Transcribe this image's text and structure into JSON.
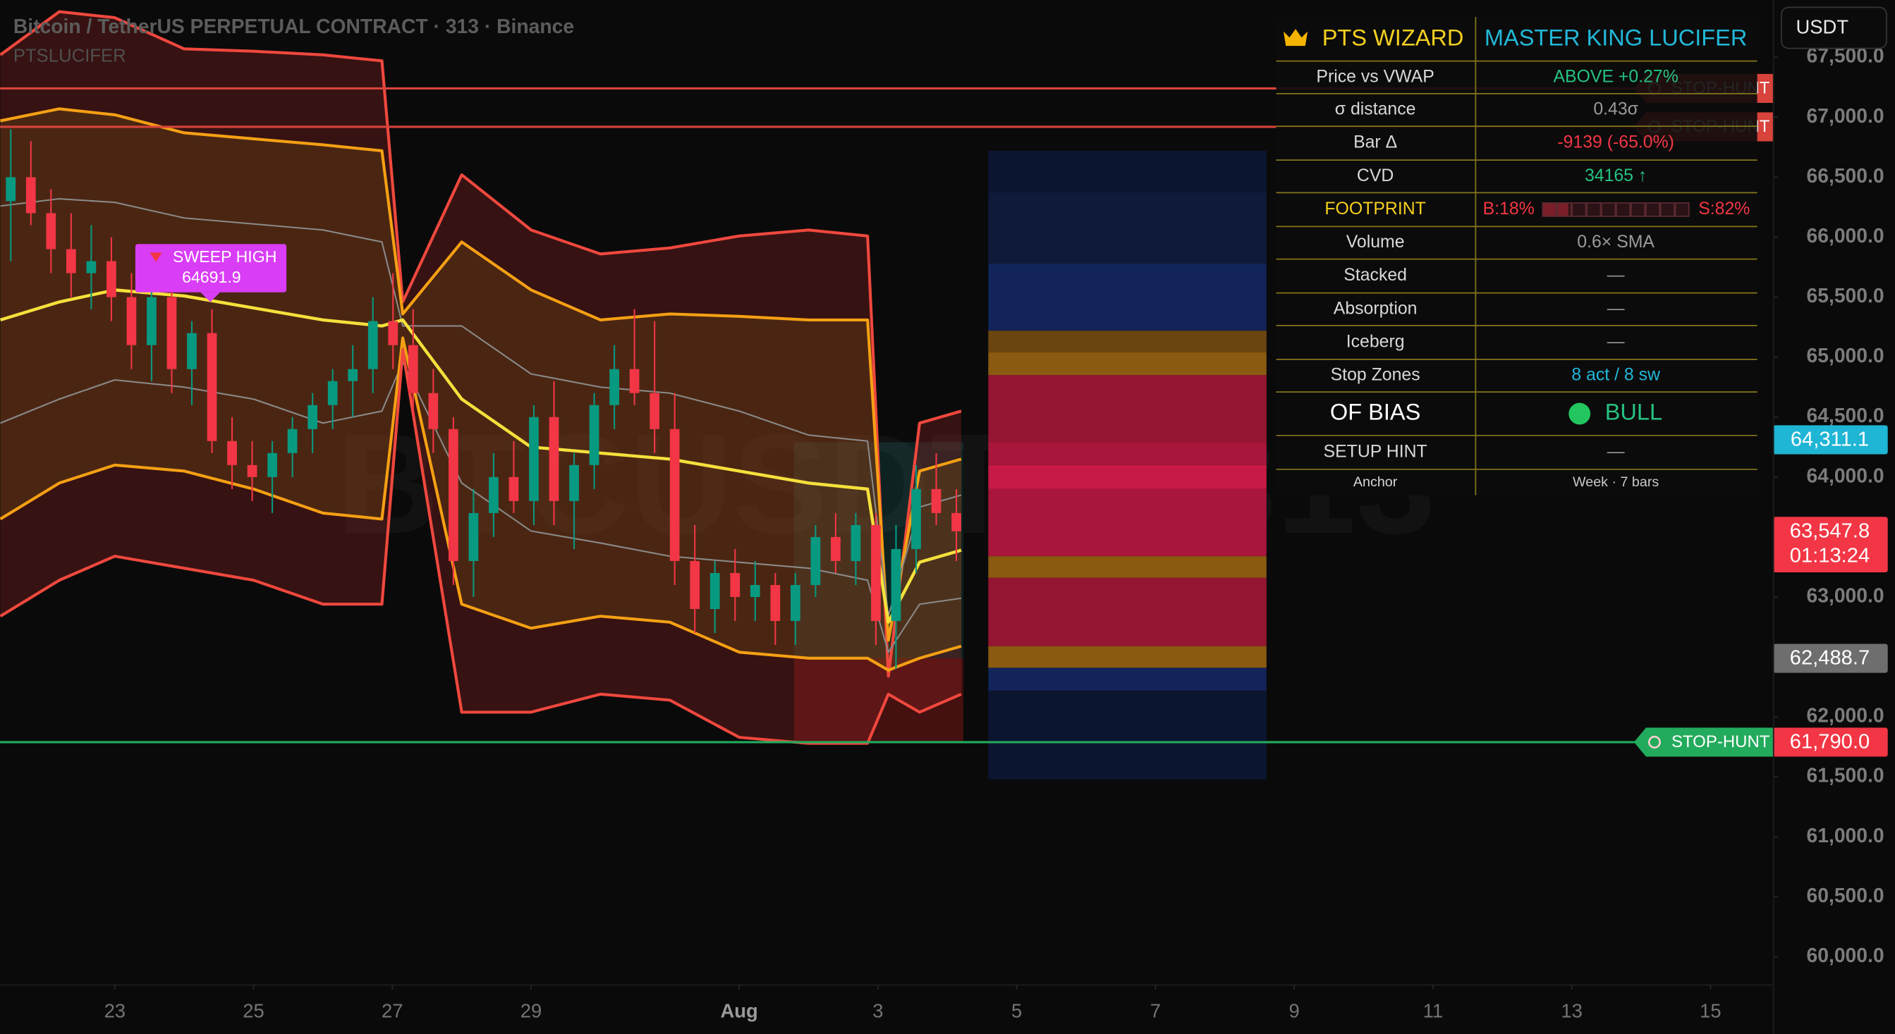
{
  "header": {
    "title": "Bitcoin / TetherUS PERPETUAL CONTRACT · 313 · Binance",
    "subtitle": "PTSLUCIFER",
    "currency": "USDT",
    "watermark": "BTCUSDT.P, 313"
  },
  "chart_data": {
    "type": "candlestick",
    "xlim": [
      21.345,
      46.9
    ],
    "ylim": [
      59770,
      67977
    ],
    "xticks": [
      23,
      25,
      27,
      29,
      {
        "value": 32,
        "label": "Aug"
      },
      {
        "value": 34,
        "label": "3"
      },
      {
        "value": 36,
        "label": "5"
      },
      {
        "value": 38,
        "label": "7"
      },
      {
        "value": 40,
        "label": "9"
      },
      {
        "value": 42,
        "label": "11"
      },
      {
        "value": 44,
        "label": "13"
      },
      {
        "value": 46,
        "label": "15"
      }
    ],
    "yticks": [
      {
        "value": 67500,
        "label": "67,500.0"
      },
      {
        "value": 67000,
        "label": "67,000.0"
      },
      {
        "value": 66500,
        "label": "66,500.0"
      },
      {
        "value": 66000,
        "label": "66,000.0"
      },
      {
        "value": 65500,
        "label": "65,500.0"
      },
      {
        "value": 65000,
        "label": "65,000.0"
      },
      {
        "value": 64500,
        "label": "64,500.0"
      },
      {
        "value": 64000,
        "label": "64,000.0"
      },
      {
        "value": 63000,
        "label": "63,000.0"
      },
      {
        "value": 62000,
        "label": "62,000.0"
      },
      {
        "value": 61500,
        "label": "61,500.0"
      },
      {
        "value": 61000,
        "label": "61,000.0"
      },
      {
        "value": 60500,
        "label": "60,500.0"
      },
      {
        "value": 60000,
        "label": "60,000.0"
      }
    ],
    "grid": false,
    "up_color": "#089981",
    "down_color": "#f23645",
    "candles": {
      "x": [
        21.5,
        21.79,
        22.08,
        22.37,
        22.66,
        22.95,
        23.24,
        23.53,
        23.82,
        24.11,
        24.4,
        24.69,
        24.98,
        25.27,
        25.56,
        25.85,
        26.14,
        26.43,
        26.72,
        27.01,
        27.3,
        27.59,
        27.88,
        28.17,
        28.46,
        28.75,
        29.04,
        29.33,
        29.62,
        29.91,
        30.2,
        30.49,
        30.78,
        31.07,
        31.36,
        31.65,
        31.94,
        32.23,
        32.52,
        32.81,
        33.1,
        33.39,
        33.68,
        33.97,
        34.26,
        34.55,
        34.84,
        35.13
      ],
      "open": [
        66300,
        66500,
        66200,
        65900,
        65700,
        65800,
        65500,
        65100,
        65500,
        64900,
        65200,
        64300,
        64100,
        64000,
        64200,
        64400,
        64600,
        64800,
        64900,
        65300,
        65100,
        64700,
        64400,
        63300,
        63700,
        64000,
        63800,
        64500,
        63800,
        64100,
        64600,
        64900,
        64700,
        64400,
        63300,
        62900,
        63200,
        63000,
        63100,
        62800,
        63100,
        63500,
        63300,
        63600,
        62800,
        63400,
        63900,
        63700
      ],
      "high": [
        66900,
        66800,
        66400,
        66200,
        66100,
        66000,
        65700,
        65600,
        65600,
        65300,
        65400,
        64500,
        64300,
        64300,
        64500,
        64700,
        64900,
        65100,
        65500,
        65700,
        65400,
        64900,
        64500,
        63900,
        64200,
        64300,
        64600,
        64800,
        64200,
        64700,
        65100,
        65400,
        65300,
        64700,
        63600,
        63300,
        63400,
        63300,
        63200,
        63200,
        63600,
        63700,
        63700,
        63700,
        63600,
        64100,
        64200,
        63900
      ],
      "low": [
        65800,
        66100,
        65700,
        65500,
        65400,
        65300,
        64900,
        64800,
        64700,
        64600,
        64200,
        63900,
        63800,
        63700,
        64000,
        64200,
        64400,
        64500,
        64700,
        64900,
        64500,
        64200,
        63100,
        63000,
        63500,
        63700,
        63600,
        63600,
        63400,
        63900,
        64400,
        64600,
        64200,
        63100,
        62700,
        62700,
        62800,
        62800,
        62600,
        62600,
        63000,
        63200,
        63100,
        62600,
        62400,
        63200,
        63600,
        63300
      ],
      "close": [
        66500,
        66200,
        65900,
        65700,
        65800,
        65500,
        65100,
        65500,
        64900,
        65200,
        64300,
        64100,
        64000,
        64200,
        64400,
        64600,
        64800,
        64900,
        65300,
        65100,
        64700,
        64400,
        63300,
        63700,
        64000,
        63800,
        64500,
        63800,
        64100,
        64600,
        64900,
        64700,
        64400,
        63300,
        62900,
        63200,
        63000,
        63100,
        62800,
        63100,
        63500,
        63300,
        63600,
        62800,
        63400,
        63900,
        63700,
        63547.8
      ]
    },
    "bands": {
      "x": [
        21.35,
        22.2,
        23,
        24,
        25,
        26,
        26.85,
        27.15,
        28,
        29,
        30,
        31,
        32,
        33,
        33.85,
        34.15,
        34.6,
        35.2
      ],
      "series": [
        {
          "color": "#f0483e",
          "width": 2.4,
          "fill": "rgba(150,35,35,0.33)",
          "values": [
            67520,
            67880,
            67830,
            67570,
            67550,
            67520,
            67470,
            65460,
            66520,
            66060,
            65860,
            65910,
            66010,
            66060,
            66010,
            62340,
            64450,
            64550
          ]
        },
        {
          "color": "#f5a014",
          "width": 2.4,
          "fill": "rgba(120,85,20,0.30)",
          "values": [
            66970,
            67070,
            67020,
            66870,
            66820,
            66770,
            66720,
            65360,
            65960,
            65560,
            65310,
            65360,
            65340,
            65310,
            65310,
            62640,
            64050,
            64150
          ]
        },
        {
          "color": "#8a8a8a",
          "width": 1.2,
          "values": [
            66260,
            66320,
            66290,
            66160,
            66110,
            66060,
            65960,
            65260,
            65260,
            64860,
            64750,
            64700,
            64550,
            64350,
            64300,
            62840,
            63750,
            63850
          ]
        },
        {
          "color": "#f5e03c",
          "width": 2.6,
          "values": [
            65310,
            65460,
            65560,
            65510,
            65410,
            65310,
            65260,
            65310,
            64650,
            64250,
            64200,
            64150,
            64050,
            63950,
            63900,
            62790,
            63290,
            63390
          ]
        },
        {
          "color": "#8a8a8a",
          "width": 1.2,
          "values": [
            64450,
            64650,
            64810,
            64750,
            64650,
            64450,
            64550,
            64960,
            63950,
            63550,
            63450,
            63340,
            63290,
            63240,
            63140,
            62540,
            62940,
            62990
          ]
        },
        {
          "color": "#f5a014",
          "width": 2.4,
          "values": [
            63650,
            63950,
            64100,
            64050,
            63900,
            63700,
            63650,
            65160,
            62940,
            62740,
            62840,
            62790,
            62540,
            62490,
            62490,
            62390,
            62490,
            62590
          ]
        },
        {
          "color": "#f0483e",
          "width": 2.4,
          "values": [
            62840,
            63140,
            63340,
            63240,
            63140,
            62940,
            62940,
            65060,
            62040,
            62040,
            62190,
            62140,
            61830,
            61780,
            61780,
            62190,
            62040,
            62190
          ]
        }
      ]
    },
    "profile": {
      "x": [
        35.59,
        39.6
      ],
      "rows": [
        {
          "from": 66720,
          "to": 66370,
          "color": "#0c1530"
        },
        {
          "from": 66370,
          "to": 65780,
          "color": "#0f1a3a"
        },
        {
          "from": 65780,
          "to": 65220,
          "color": "#12245a"
        },
        {
          "from": 65220,
          "to": 65040,
          "color": "#6b4510"
        },
        {
          "from": 65040,
          "to": 64850,
          "color": "#8a5a10"
        },
        {
          "from": 64850,
          "to": 64290,
          "color": "#951632"
        },
        {
          "from": 64290,
          "to": 64100,
          "color": "#a8163c"
        },
        {
          "from": 64100,
          "to": 63900,
          "color": "#c81a46"
        },
        {
          "from": 63900,
          "to": 63340,
          "color": "#a8163c"
        },
        {
          "from": 63340,
          "to": 63160,
          "color": "#8a5a10"
        },
        {
          "from": 63160,
          "to": 62590,
          "color": "#951632"
        },
        {
          "from": 62590,
          "to": 62410,
          "color": "#8a5a10"
        },
        {
          "from": 62410,
          "to": 62220,
          "color": "#12245a"
        },
        {
          "from": 62220,
          "to": 61480,
          "color": "#0c1530"
        }
      ]
    },
    "zones": [
      {
        "x": [
          32.79,
          35.23
        ],
        "from": 64290,
        "to": 62490,
        "color": "rgba(38,166,154,0.16)"
      },
      {
        "x": [
          32.79,
          35.23
        ],
        "from": 62490,
        "to": 61790,
        "color": "rgba(140,25,25,0.45)"
      }
    ],
    "levels": [
      {
        "name": "STOP-HUNT",
        "value": 67240,
        "color": "#d8433b"
      },
      {
        "name": "STOP-HUNT",
        "value": 66920,
        "color": "#d8433b"
      },
      {
        "name": "STOP-HUNT",
        "value": 61790,
        "color": "#22ab5c"
      }
    ],
    "annotations": [
      {
        "text": "SWEEP HIGH",
        "value": 64691.9,
        "color": "#d93df5"
      }
    ],
    "price_labels": [
      {
        "value": 64311.1,
        "label": "64,311.1",
        "color": "#1fb5d5"
      },
      {
        "value": 63547.8,
        "label": "63,547.8",
        "sub": "01:13:24",
        "color": "#f23645"
      },
      {
        "value": 62488.7,
        "label": "62,488.7",
        "color": "#6e6e6e"
      },
      {
        "value": 61790,
        "label": "61,790.0",
        "color": "#f23645"
      }
    ]
  },
  "table": {
    "header": [
      {
        "text": "PTS WIZARD",
        "color": "#f5d020"
      },
      {
        "text": "MASTER KING LUCIFER",
        "color": "#22b8d8"
      }
    ],
    "rows": [
      {
        "label": "Price vs VWAP",
        "value": "ABOVE +0.27%",
        "color": "#26c281"
      },
      {
        "label": "σ distance",
        "value": "0.43σ",
        "color": "#9a9a9a"
      },
      {
        "label": "Bar Δ",
        "value": "-9139 (-65.0%)",
        "color": "#f23645"
      },
      {
        "label": "CVD",
        "value": "34165 ↑",
        "color": "#26c281"
      },
      {
        "label": "FOOTPRINT",
        "label_color": "#f5d020",
        "buy": 18,
        "sell": 82,
        "buy_label": "B:18%",
        "sell_label": "S:82%",
        "color": "#f23645"
      },
      {
        "label": "Volume",
        "value": "0.6× SMA",
        "color": "#9a9a9a"
      },
      {
        "label": "Stacked",
        "value": "—",
        "color": "#9a9a9a"
      },
      {
        "label": "Absorption",
        "value": "—",
        "color": "#9a9a9a"
      },
      {
        "label": "Iceberg",
        "value": "—",
        "color": "#9a9a9a"
      },
      {
        "label": "Stop Zones",
        "value": "8 act / 8 sw",
        "color": "#22b8d8"
      },
      {
        "label": "OF BIAS",
        "value": "BULL",
        "color": "#26c281",
        "big": true
      },
      {
        "label": "SETUP HINT",
        "value": "—",
        "color": "#9a9a9a"
      },
      {
        "label": "Anchor",
        "value": "Week · 7 bars",
        "color": "#c8c8c8",
        "small": true
      }
    ]
  }
}
